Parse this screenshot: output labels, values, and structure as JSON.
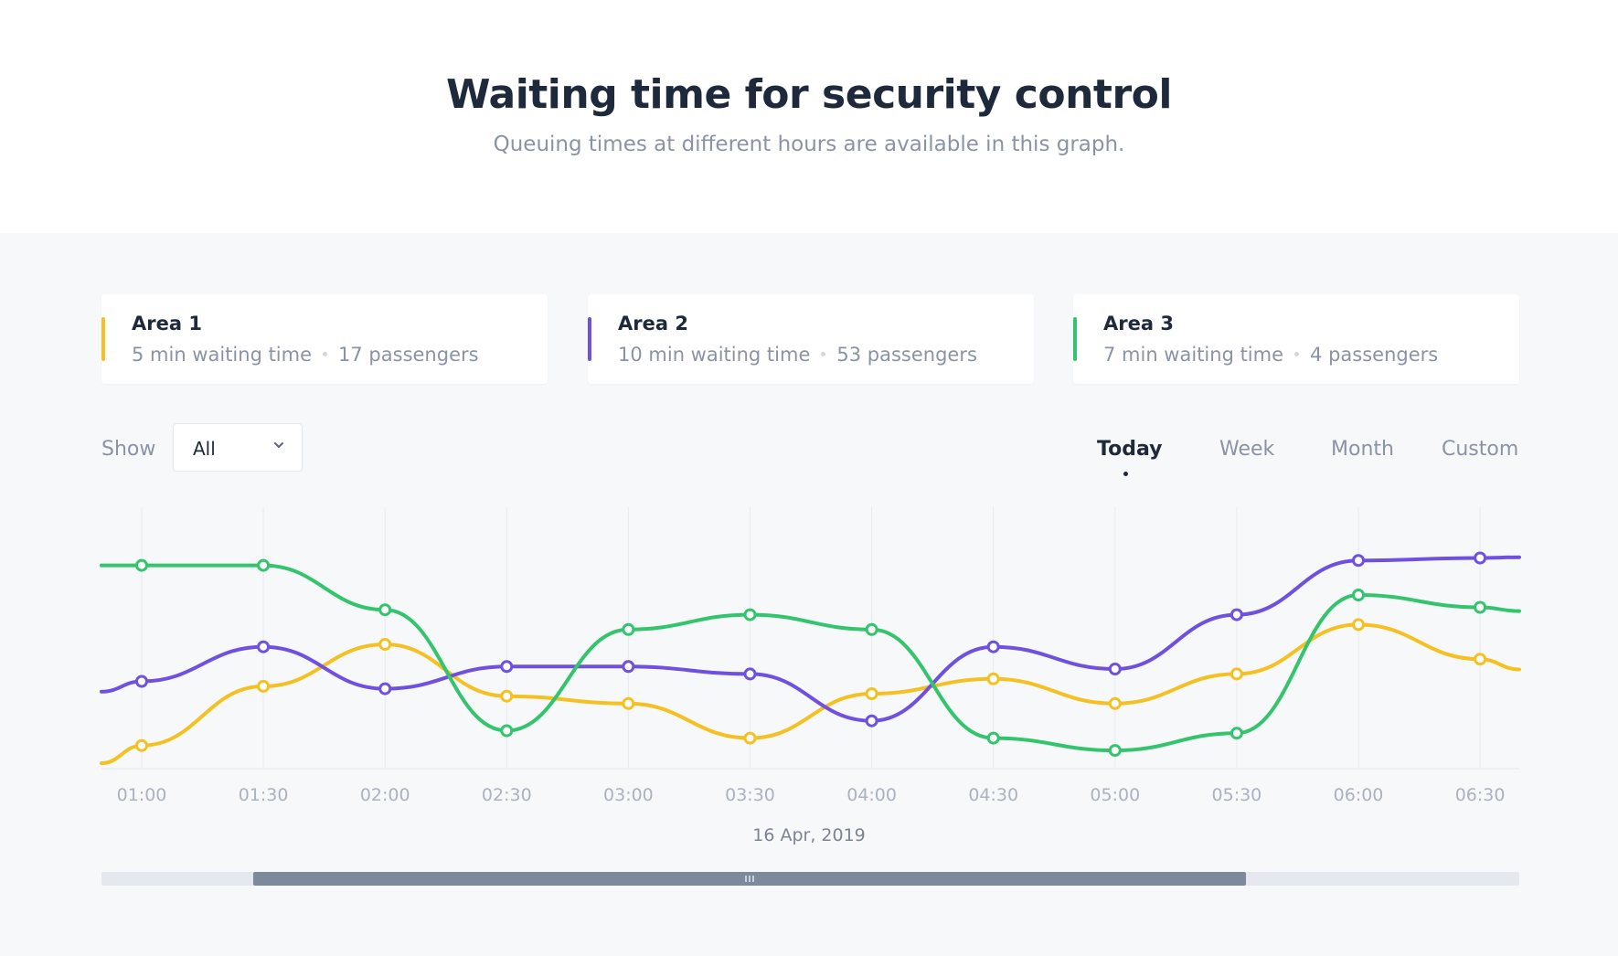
{
  "header": {
    "title": "Waiting time for security control",
    "subtitle": "Queuing times at different hours are available in this graph."
  },
  "areas": [
    {
      "name": "Area 1",
      "waiting": "5 min waiting time",
      "passengers": "17 passengers",
      "color": "#f5c022"
    },
    {
      "name": "Area 2",
      "waiting": "10 min waiting time",
      "passengers": "53 passengers",
      "color": "#7050e0"
    },
    {
      "name": "Area 3",
      "waiting": "7 min waiting time",
      "passengers": "4 passengers",
      "color": "#34c46d"
    }
  ],
  "filter": {
    "label": "Show",
    "value": "All"
  },
  "tabs": [
    {
      "label": "Today",
      "active": true
    },
    {
      "label": "Week",
      "active": false
    },
    {
      "label": "Month",
      "active": false
    },
    {
      "label": "Custom",
      "active": false
    }
  ],
  "chart_data": {
    "type": "line",
    "categories": [
      "01:00",
      "01:30",
      "02:00",
      "02:30",
      "03:00",
      "03:30",
      "04:00",
      "04:30",
      "05:00",
      "05:30",
      "06:00",
      "06:30"
    ],
    "date_label": "16 Apr, 2019",
    "grid": true,
    "ylim": [
      0,
      100
    ],
    "series": [
      {
        "name": "Area 1",
        "color": "#f5c022",
        "values": [
          9,
          33,
          50,
          29,
          26,
          12,
          30,
          36,
          26,
          38,
          58,
          44
        ]
      },
      {
        "name": "Area 2",
        "color": "#7050e0",
        "values": [
          35,
          49,
          32,
          41,
          41,
          38,
          19,
          49,
          40,
          62,
          84,
          85
        ]
      },
      {
        "name": "Area 3",
        "color": "#34c46d",
        "values": [
          82,
          82,
          64,
          15,
          56,
          62,
          56,
          12,
          7,
          14,
          70,
          65
        ]
      }
    ]
  },
  "scrollbar": {
    "start": 0.107,
    "end": 0.807
  }
}
